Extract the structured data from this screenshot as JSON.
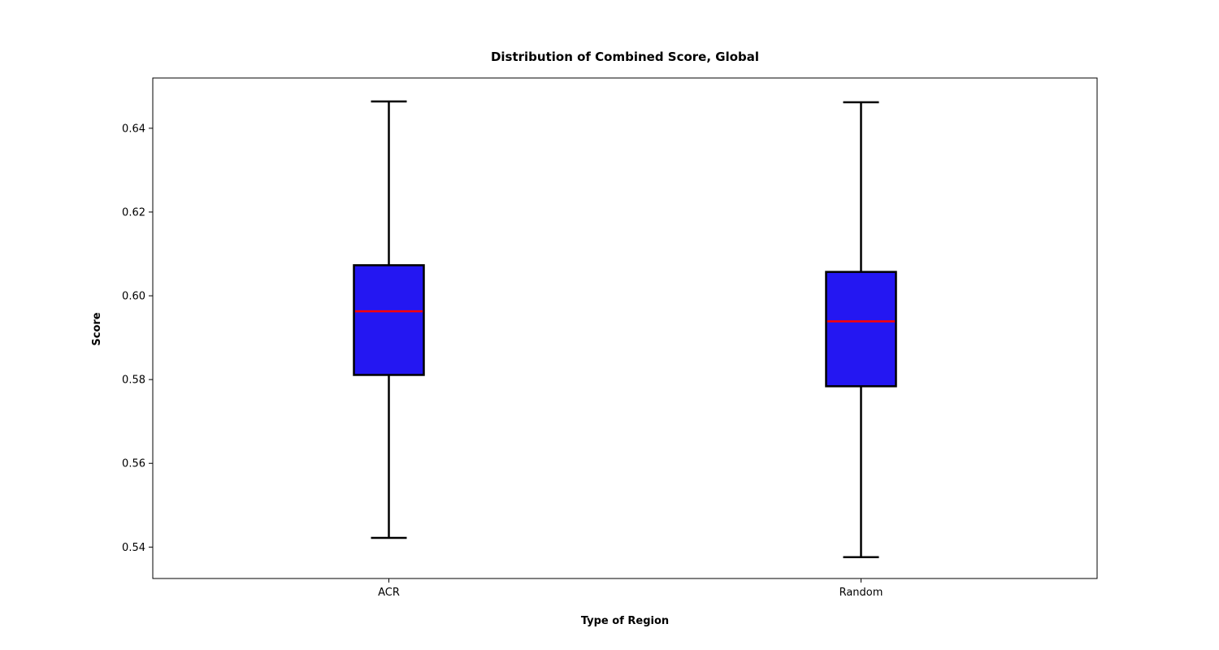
{
  "chart_data": {
    "type": "box",
    "title": "Distribution of Combined Score, Global",
    "xlabel": "Type of Region",
    "ylabel": "Score",
    "ylim": [
      0.5325,
      0.652
    ],
    "yticks": [
      0.54,
      0.56,
      0.58,
      0.6,
      0.62,
      0.64
    ],
    "ytick_labels": [
      "0.54",
      "0.56",
      "0.58",
      "0.60",
      "0.62",
      "0.64"
    ],
    "categories": [
      "ACR",
      "Random"
    ],
    "boxes": [
      {
        "category": "ACR",
        "whisker_low": 0.5422,
        "q1": 0.5811,
        "median": 0.5963,
        "q3": 0.6073,
        "whisker_high": 0.6464
      },
      {
        "category": "Random",
        "whisker_low": 0.5376,
        "q1": 0.5784,
        "median": 0.5939,
        "q3": 0.6057,
        "whisker_high": 0.6462
      }
    ],
    "box_color": "#2417f2",
    "median_color": "#ff0000",
    "grid": false,
    "legend": "none"
  }
}
